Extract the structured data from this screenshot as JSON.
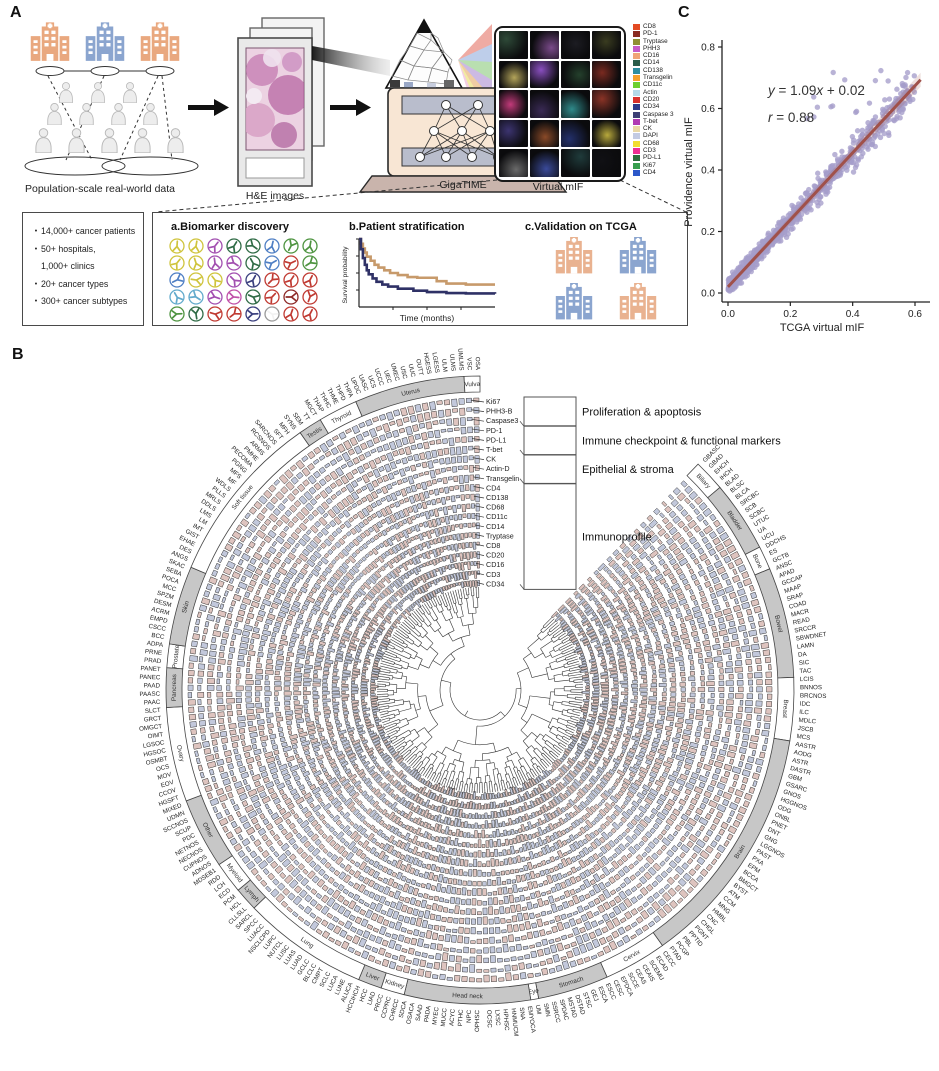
{
  "panels": {
    "a": "A",
    "b": "B",
    "c": "C"
  },
  "panel_a": {
    "population_label": "Population-scale real-world data",
    "he_label": "H&E images",
    "gigatime_label": "GigaTIME",
    "vmif_label": "Virtual mIF",
    "vmif_markers": [
      {
        "name": "CD8",
        "color": "#e34a22"
      },
      {
        "name": "PD-1",
        "color": "#8a2b22"
      },
      {
        "name": "Tryptase",
        "color": "#8f8f33"
      },
      {
        "name": "PHH3",
        "color": "#c55bc8"
      },
      {
        "name": "CD16",
        "color": "#f0a477"
      },
      {
        "name": "CD14",
        "color": "#2a5c4a"
      },
      {
        "name": "CD138",
        "color": "#2e8ea0"
      },
      {
        "name": "Transgelin",
        "color": "#f5a02b"
      },
      {
        "name": "CD11c",
        "color": "#6ccf2e"
      },
      {
        "name": "Actin",
        "color": "#b5d9e8"
      },
      {
        "name": "CD20",
        "color": "#d9302b"
      },
      {
        "name": "CD34",
        "color": "#2f3a8a"
      },
      {
        "name": "Caspase 3",
        "color": "#3c3f75"
      },
      {
        "name": "T-bet",
        "color": "#b03ab3"
      },
      {
        "name": "CK",
        "color": "#e9d8a6"
      },
      {
        "name": "DAPI",
        "color": "#c3cbe3"
      },
      {
        "name": "CD68",
        "color": "#f1de30"
      },
      {
        "name": "CD3",
        "color": "#ee3093"
      },
      {
        "name": "PD-L1",
        "color": "#2e6e3d"
      },
      {
        "name": "Ki67",
        "color": "#379e4d"
      },
      {
        "name": "CD4",
        "color": "#2b57c9"
      }
    ],
    "tile_colors": [
      "#2e4a38",
      "#7a4a8a",
      "#1c1c22",
      "#3a3c20",
      "#b3a45a",
      "#8a4fc0",
      "#24402c",
      "#7a2a20",
      "#c23a7a",
      "#3a2a55",
      "#2f8a8a",
      "#8a3326",
      "#3c3470",
      "#8a4a28",
      "#23306b",
      "#b8a93c",
      "#6a6a6a",
      "#3a4a9a",
      "#1f3b3b",
      "#101014"
    ],
    "stats_bullets": [
      {
        "bullet": true,
        "text": "14,000+ cancer patients"
      },
      {
        "bullet": true,
        "text": "50+ hospitals,"
      },
      {
        "bullet": false,
        "text": "1,000+ clinics"
      },
      {
        "bullet": true,
        "text": "20+ cancer types"
      },
      {
        "bullet": true,
        "text": "300+ cancer subtypes"
      }
    ],
    "sub_a_title": "a.Biomarker discovery",
    "sub_b_title": "b.Patient stratification",
    "sub_c_title": "c.Validation on TCGA",
    "km": {
      "ylabel": "Survival probability",
      "xlabel": "Time (months)"
    },
    "antibody_colors": [
      "#cfc43c",
      "#cfc43c",
      "#a24fb0",
      "#2f6b45",
      "#2f6b45",
      "#4f7fc4",
      "#4e9440",
      "#4e9440",
      "#cfc43c",
      "#cfc43c",
      "#a24fb0",
      "#a24fb0",
      "#2f6b45",
      "#4f7fc4",
      "#c03a32",
      "#4e9440",
      "#4f7fc4",
      "#cfc43c",
      "#cfc43c",
      "#a24fb0",
      "#3a3f7e",
      "#c03a32",
      "#c03a32",
      "#c03a32",
      "#62aacc",
      "#62aacc",
      "#a24fb0",
      "#c050a8",
      "#2f6b45",
      "#c03a32",
      "#8e2a28",
      "#c03a32",
      "#4e9440",
      "#2f6b45",
      "#c03a32",
      "#c03a32",
      "#3a3f7e",
      "#f2f2f2",
      "#c03a32",
      "#c03a32"
    ]
  },
  "chart_data": [
    {
      "id": "panel_b_circle",
      "type": "circular_dendrogram_heatmap",
      "title": "",
      "rings_markers": [
        "Ki67",
        "PHH3-B",
        "Caspase3",
        "PD-1",
        "PD-L1",
        "T-bet",
        "CK",
        "Actin-D",
        "Transgelin",
        "CD4",
        "CD138",
        "CD68",
        "CD11c",
        "CD14",
        "Tryptase",
        "CD8",
        "CD20",
        "CD16",
        "CD3",
        "CD34"
      ],
      "marker_categories": [
        {
          "label": "Proliferation & apoptosis",
          "from": 0,
          "to": 2
        },
        {
          "label": "Immune checkpoint & functional markers",
          "from": 3,
          "to": 5
        },
        {
          "label": "Epithelial & stroma",
          "from": 6,
          "to": 8
        },
        {
          "label": "Immunoprofile",
          "from": 9,
          "to": 19
        }
      ],
      "bar_colors": {
        "pink": "#dec4bf",
        "blue": "#c2c8db"
      },
      "groups": [
        {
          "name": "Biliary",
          "band": "white",
          "codes": [
            "GBASC",
            "GBAD",
            "EHCH",
            "IHCH"
          ]
        },
        {
          "name": "Bladder",
          "band": "gray",
          "codes": [
            "BLAD",
            "BLSC",
            "BLCA",
            "SRCBC",
            "SCB",
            "SCBC",
            "UTUC",
            "UA",
            "UCU"
          ]
        },
        {
          "name": "Bone",
          "band": "white",
          "codes": [
            "DDCHS",
            "ES",
            "GCTB"
          ]
        },
        {
          "name": "Bowel",
          "band": "gray",
          "codes": [
            "ANSC",
            "APAD",
            "GCCAP",
            "MAAP",
            "SRAP",
            "COAD",
            "MACR",
            "READ",
            "SRCCR",
            "SBWDNET",
            "LAMN",
            "DA",
            "SIC",
            "TAC"
          ]
        },
        {
          "name": "Breast",
          "band": "white",
          "codes": [
            "LCIS",
            "BNNOS",
            "BRCNOS",
            "IDC",
            "ILC",
            "MDLC",
            "JSCB",
            "MCS"
          ]
        },
        {
          "name": "Brain",
          "band": "gray",
          "codes": [
            "AASTR",
            "AODG",
            "ASTR",
            "DASTR",
            "GBM",
            "GSARC",
            "GNOS",
            "HGGNOS",
            "ODG",
            "ONBL",
            "PNET",
            "DNT",
            "GNG",
            "LGGNOS",
            "PAST",
            "PXA",
            "EPM",
            "BCCA",
            "BMGCT",
            "BYST",
            "ATM",
            "CCM",
            "MNG",
            "HMBL",
            "CNC",
            "CHGL",
            "PGNT",
            "PPTID",
            "PBL",
            "PCGP",
            "PTAD"
          ]
        },
        {
          "name": "Cervix",
          "band": "white",
          "codes": [
            "CECC",
            "ECAD",
            "SCEMU",
            "CEAIS",
            "CEAS",
            "SCCE",
            "EPDCA",
            "CESC"
          ]
        },
        {
          "name": "Stomach",
          "band": "gray",
          "codes": [
            "ESCC",
            "ESCA",
            "GEJ",
            "STSC",
            "DSTAD",
            "MSTAD",
            "SPDAC",
            "SSRCC",
            "SMN"
          ]
        },
        {
          "name": "Eye",
          "band": "white",
          "codes": [
            "UM"
          ]
        },
        {
          "name": "Head neck",
          "band": "gray",
          "codes": [
            "EMYOCA",
            "SNA",
            "HNMUCM",
            "HPHSC",
            "LXSC",
            "OCSC",
            "OPHSC",
            "NPC",
            "PTHC",
            "ACYC",
            "MUCC",
            "MYEC",
            "PADA",
            "SAAD",
            "OSACA",
            "SDCA"
          ]
        },
        {
          "name": "Kidney",
          "band": "white",
          "codes": [
            "CHRCC",
            "CCPRC",
            "PRCC"
          ]
        },
        {
          "name": "Liver",
          "band": "gray",
          "codes": [
            "LIAD",
            "HCC",
            "HCCIHCH"
          ]
        },
        {
          "name": "Lung",
          "band": "white",
          "codes": [
            "ALUCA",
            "LUNE",
            "LUCA",
            "SCLC",
            "CMPT",
            "BLCLC",
            "GCLC",
            "LUAD",
            "LUAS",
            "LUSC",
            "NUTCL",
            "LUPC",
            "NSCLCPD",
            "LUACC",
            "SPCC",
            "SARCL"
          ]
        },
        {
          "name": "Lymph",
          "band": "gray",
          "codes": [
            "CLLSLL",
            "HCL",
            "PCM"
          ]
        },
        {
          "name": "Myeloid",
          "band": "white",
          "codes": [
            "ECD",
            "LCH",
            "RDD",
            "MDSEB1"
          ]
        },
        {
          "name": "Other",
          "band": "gray",
          "codes": [
            "ADNOS",
            "CUPNOS",
            "NECNOS",
            "NETNOS",
            "PDC",
            "SCUP",
            "SCCNOS",
            "UDMN",
            "MIXED"
          ]
        },
        {
          "name": "Ovary",
          "band": "white",
          "codes": [
            "HGSFT",
            "CCOV",
            "EOV",
            "MOV",
            "OCS",
            "OSMBT",
            "HGSOC",
            "LGSOC",
            "OIMT",
            "OMGCT",
            "GRCT",
            "SLCT"
          ]
        },
        {
          "name": "Pancreas",
          "band": "gray",
          "codes": [
            "PAAC",
            "PAASC",
            "PAAD",
            "PANEC",
            "PANET"
          ]
        },
        {
          "name": "Prostate",
          "band": "white",
          "codes": [
            "PRAD",
            "PRNE",
            "ADPA"
          ]
        },
        {
          "name": "Skin",
          "band": "gray",
          "codes": [
            "BCC",
            "CSCC",
            "EMPD",
            "ACRM",
            "DESM",
            "SPZM",
            "MCC",
            "POCA",
            "SEBA",
            "SKAC"
          ]
        },
        {
          "name": "Soft tissue",
          "band": "white",
          "codes": [
            "ANGS",
            "DES",
            "EHAE",
            "GIST",
            "IMT",
            "LM",
            "LMS",
            "DDLS",
            "MRLS",
            "PLLS",
            "WDLS",
            "MF",
            "MFS",
            "PGNG",
            "PECOMA",
            "PMHE",
            "ARMS",
            "RCSNOS",
            "SARCNOS",
            "SFT",
            "MFH",
            "SYNS"
          ]
        },
        {
          "name": "Testis",
          "band": "gray",
          "codes": [
            "SEM",
            "TT",
            "MGCT"
          ]
        },
        {
          "name": "Thyroid",
          "band": "white",
          "codes": [
            "THAP",
            "THHC",
            "THME",
            "THPD",
            "THPA"
          ]
        },
        {
          "name": "Uterus",
          "band": "gray",
          "codes": [
            "UPDC",
            "UASC",
            "UCS",
            "UCCC",
            "UEC",
            "UMEC",
            "USC",
            "UUC",
            "OUTT",
            "HGESS",
            "LGESS",
            "ULM",
            "ULMS",
            "UMLMS"
          ]
        },
        {
          "name": "Vulva",
          "band": "white",
          "codes": [
            "VSC",
            "OSA"
          ]
        }
      ]
    },
    {
      "id": "panel_c_scatter",
      "type": "scatter",
      "xlabel": "TCGA virtual mIF",
      "ylabel": "Providence virtual mIF",
      "xlim": [
        0.0,
        0.62
      ],
      "ylim": [
        0.0,
        0.8
      ],
      "xticks": [
        "0.0",
        "0.2",
        "0.4",
        "0.6"
      ],
      "yticks": [
        "0.0",
        "0.2",
        "0.4",
        "0.6",
        "0.8"
      ],
      "regression": {
        "slope": 1.09,
        "intercept": 0.02,
        "r": 0.88
      },
      "equation_parts": [
        "y",
        " = 1.09",
        "x",
        " + 0.02"
      ],
      "r_parts": [
        "r",
        " = 0.88"
      ],
      "point_color": "#a59ecb",
      "line_color": "#a0514a",
      "n_points_approx": 850
    },
    {
      "id": "panel_a_km",
      "type": "line",
      "xlabel": "Time (months)",
      "ylabel": "Survival probability",
      "series": [
        {
          "name": "upper",
          "color": "#c79a6b",
          "steps": [
            [
              0,
              1
            ],
            [
              1,
              0.93
            ],
            [
              2,
              0.86
            ],
            [
              3,
              0.8
            ],
            [
              4,
              0.74
            ],
            [
              6,
              0.68
            ],
            [
              8,
              0.62
            ],
            [
              10,
              0.58
            ],
            [
              13,
              0.54
            ],
            [
              16,
              0.5
            ],
            [
              20,
              0.47
            ],
            [
              25,
              0.44
            ],
            [
              30,
              0.43
            ],
            [
              40,
              0.38
            ],
            [
              45,
              0.345
            ],
            [
              55,
              0.33
            ],
            [
              70,
              0.33
            ]
          ]
        },
        {
          "name": "lower",
          "color": "#2f3166",
          "steps": [
            [
              0,
              1
            ],
            [
              1,
              0.85
            ],
            [
              2,
              0.72
            ],
            [
              3,
              0.62
            ],
            [
              4,
              0.54
            ],
            [
              5,
              0.48
            ],
            [
              7,
              0.42
            ],
            [
              9,
              0.37
            ],
            [
              12,
              0.33
            ],
            [
              15,
              0.3
            ],
            [
              20,
              0.27
            ],
            [
              28,
              0.24
            ],
            [
              35,
              0.22
            ],
            [
              45,
              0.205
            ],
            [
              55,
              0.2
            ],
            [
              70,
              0.195
            ]
          ]
        }
      ],
      "xlim": [
        0,
        70
      ],
      "ylim": [
        0,
        1
      ]
    }
  ]
}
